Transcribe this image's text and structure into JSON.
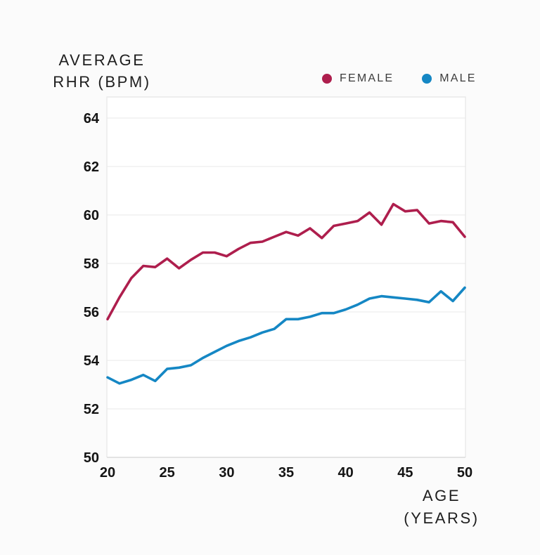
{
  "header": {
    "title_line1": "AVERAGE",
    "title_line2": "RHR (BPM)"
  },
  "legend": {
    "items": [
      {
        "label": "FEMALE",
        "color": "#AE1E4D"
      },
      {
        "label": "MALE",
        "color": "#1587C4"
      }
    ]
  },
  "x_axis": {
    "title_line1": "AGE",
    "title_line2": "(YEARS)"
  },
  "chart_data": {
    "type": "line",
    "title": "AVERAGE RHR (BPM)",
    "xlabel": "AGE (YEARS)",
    "ylabel": "AVERAGE RHR (BPM)",
    "x": [
      20,
      21,
      22,
      23,
      24,
      25,
      26,
      27,
      28,
      29,
      30,
      31,
      32,
      33,
      34,
      35,
      36,
      37,
      38,
      39,
      40,
      41,
      42,
      43,
      44,
      45,
      46,
      47,
      48,
      49,
      50
    ],
    "series": [
      {
        "name": "FEMALE",
        "color": "#AE1E4D",
        "values": [
          55.7,
          56.6,
          57.4,
          57.9,
          57.85,
          58.2,
          57.8,
          58.15,
          58.45,
          58.45,
          58.3,
          58.6,
          58.85,
          58.9,
          59.1,
          59.3,
          59.15,
          59.45,
          59.05,
          59.55,
          59.65,
          59.75,
          60.1,
          59.6,
          60.45,
          60.15,
          60.2,
          59.65,
          59.75,
          59.7,
          59.1
        ]
      },
      {
        "name": "MALE",
        "color": "#1587C4",
        "values": [
          53.3,
          53.05,
          53.2,
          53.4,
          53.15,
          53.65,
          53.7,
          53.8,
          54.1,
          54.35,
          54.6,
          54.8,
          54.95,
          55.15,
          55.3,
          55.7,
          55.7,
          55.8,
          55.95,
          55.95,
          56.1,
          56.3,
          56.55,
          56.65,
          56.6,
          56.55,
          56.5,
          56.4,
          56.85,
          56.45,
          57.0
        ]
      }
    ],
    "xlim": [
      20,
      50
    ],
    "ylim": [
      50,
      64
    ],
    "x_ticks": [
      20,
      25,
      30,
      35,
      40,
      45,
      50
    ],
    "y_ticks": [
      50,
      52,
      54,
      56,
      58,
      60,
      62,
      64
    ],
    "grid": "horizontal",
    "legend_position": "top-right",
    "grid_color": "#F0F0F0",
    "border_color": "#E9E9E9",
    "axis_line_color": "#DBDBDB",
    "tick_label_color": "#141414"
  }
}
